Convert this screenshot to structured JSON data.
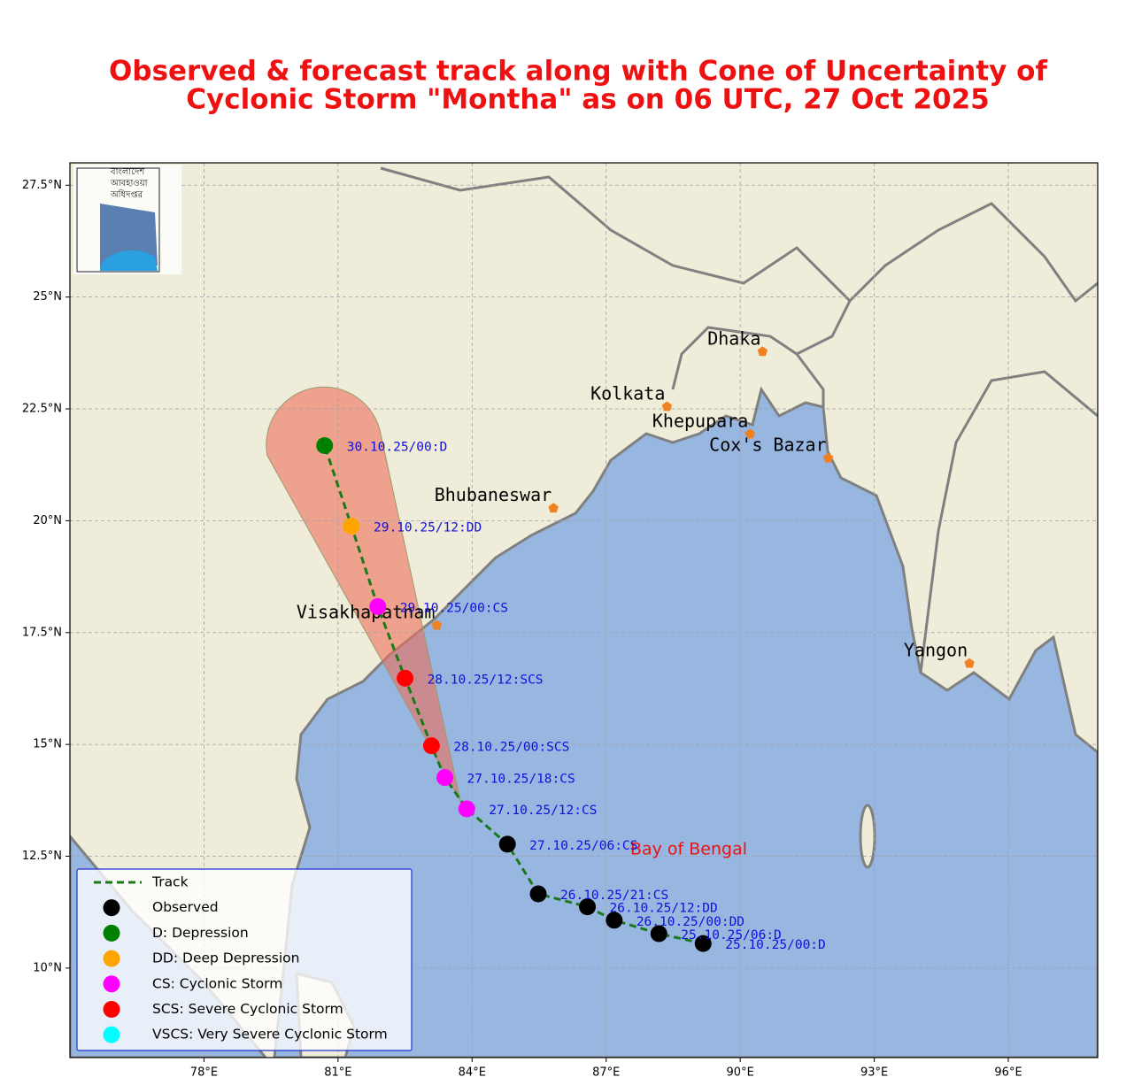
{
  "title": [
    "Observed & forecast track along with Cone of Uncertainty of",
    "Cyclonic Storm \"Montha\" as on 06 UTC, 27 Oct 2025"
  ],
  "logo": [
    "বাংলাদেশ",
    "আবহাওয়া",
    "অধিদপ্তর"
  ],
  "map": {
    "lonlim": [
      75,
      98
    ],
    "latlim": [
      8,
      28
    ],
    "lonticks": [
      {
        "value": 78,
        "label": "78°E"
      },
      {
        "value": 81,
        "label": "81°E"
      },
      {
        "value": 84,
        "label": "84°E"
      },
      {
        "value": 87,
        "label": "87°E"
      },
      {
        "value": 90,
        "label": "90°E"
      },
      {
        "value": 93,
        "label": "93°E"
      },
      {
        "value": 96,
        "label": "96°E"
      }
    ],
    "latticks": [
      {
        "value": 10,
        "label": "10°N"
      },
      {
        "value": 12.5,
        "label": "12.5°N"
      },
      {
        "value": 15,
        "label": "15°N"
      },
      {
        "value": 17.5,
        "label": "17.5°N"
      },
      {
        "value": 20,
        "label": "20°N"
      },
      {
        "value": 22.5,
        "label": "22.5°N"
      },
      {
        "value": 25,
        "label": "25°N"
      },
      {
        "value": 27.5,
        "label": "27.5°N"
      }
    ],
    "grid": true,
    "sea_label": "Bay of Bengal",
    "track_color": "#1a7a1a",
    "points": [
      {
        "lon": 89.17,
        "lat": 10.55,
        "label": "25.10.25/00:D",
        "color": "#000000"
      },
      {
        "lon": 88.18,
        "lat": 10.77,
        "label": "25.10.25/06:D",
        "color": "#000000"
      },
      {
        "lon": 87.18,
        "lat": 11.07,
        "label": "26.10.25/00:DD",
        "color": "#000000"
      },
      {
        "lon": 86.58,
        "lat": 11.37,
        "label": "26.10.25/12:DD",
        "color": "#000000"
      },
      {
        "lon": 85.48,
        "lat": 11.66,
        "label": "26.10.25/21:CS",
        "color": "#000000"
      },
      {
        "lon": 84.79,
        "lat": 12.77,
        "label": "27.10.25/06:CS",
        "color": "#000000"
      },
      {
        "lon": 83.88,
        "lat": 13.56,
        "label": "27.10.25/12:CS",
        "color": "#ff00ff"
      },
      {
        "lon": 83.39,
        "lat": 14.26,
        "label": "27.10.25/18:CS",
        "color": "#ff00ff"
      },
      {
        "lon": 83.09,
        "lat": 14.97,
        "label": "28.10.25/00:SCS",
        "color": "#ff0000"
      },
      {
        "lon": 82.5,
        "lat": 16.48,
        "label": "28.10.25/12:SCS",
        "color": "#ff0000"
      },
      {
        "lon": 81.89,
        "lat": 18.08,
        "label": "29.10.25/00:CS",
        "color": "#ff00ff"
      },
      {
        "lon": 81.3,
        "lat": 19.88,
        "label": "29.10.25/12:DD",
        "color": "#ffa500"
      },
      {
        "lon": 80.7,
        "lat": 21.68,
        "label": "30.10.25/00:D",
        "color": "#008000"
      }
    ],
    "cities": [
      {
        "name": "Dhaka",
        "lon": 90.5,
        "lat": 23.78
      },
      {
        "name": "Kolkata",
        "lon": 88.36,
        "lat": 22.55
      },
      {
        "name": "Khepupara",
        "lon": 90.22,
        "lat": 21.94
      },
      {
        "name": "Cox's Bazar",
        "lon": 91.97,
        "lat": 21.4
      },
      {
        "name": "Bhubaneswar",
        "lon": 85.82,
        "lat": 20.28
      },
      {
        "name": "Visakhapatnam",
        "lon": 83.21,
        "lat": 17.66
      },
      {
        "name": "Yangon",
        "lon": 95.13,
        "lat": 16.81
      }
    ],
    "legend": [
      {
        "label": "Track",
        "color": "#1a7a1a"
      },
      {
        "label": "Observed",
        "color": "#000000"
      },
      {
        "label": "D: Depression",
        "color": "#008000"
      },
      {
        "label": "DD: Deep Depression",
        "color": "#ffa500"
      },
      {
        "label": "CS: Cyclonic Storm",
        "color": "#ff00ff"
      },
      {
        "label": "SCS: Severe Cyclonic Storm",
        "color": "#ff0000"
      },
      {
        "label": "VSCS: Very Severe Cyclonic Storm",
        "color": "#00ffff"
      }
    ]
  }
}
